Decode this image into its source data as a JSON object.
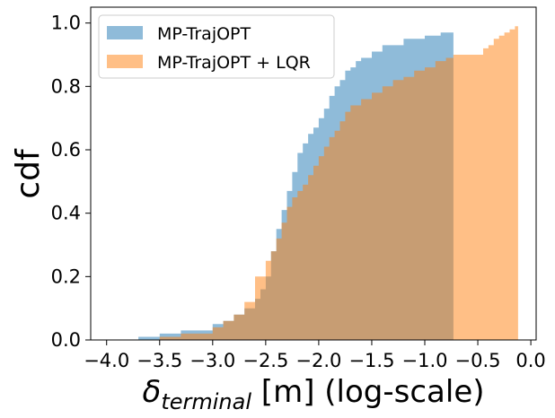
{
  "chart_data": {
    "type": "area",
    "title": "",
    "xlabel_symbol": "δ",
    "xlabel_subscript": "terminal",
    "xlabel_rest": " [m] (log-scale)",
    "ylabel": "cdf",
    "xlim": [
      -4.15,
      0.05
    ],
    "ylim": [
      0.0,
      1.05
    ],
    "xticks": [
      -4.0,
      -3.5,
      -3.0,
      -2.5,
      -2.0,
      -1.5,
      -1.0,
      -0.5,
      0.0
    ],
    "xtick_labels": [
      "−4.0",
      "−3.5",
      "−3.0",
      "−2.5",
      "−2.0",
      "−1.5",
      "−1.0",
      "−0.5",
      "0.0"
    ],
    "yticks": [
      0.0,
      0.2,
      0.4,
      0.6,
      0.8,
      1.0
    ],
    "ytick_labels": [
      "0.0",
      "0.2",
      "0.4",
      "0.6",
      "0.8",
      "1.0"
    ],
    "legend_position": "top-left",
    "series": [
      {
        "name": "MP-TrajOPT",
        "color": "#1f77b4",
        "opacity": 0.5,
        "x": [
          -3.95,
          -3.7,
          -3.5,
          -3.3,
          -3.0,
          -2.9,
          -2.8,
          -2.7,
          -2.6,
          -2.55,
          -2.5,
          -2.45,
          -2.4,
          -2.35,
          -2.3,
          -2.25,
          -2.2,
          -2.15,
          -2.1,
          -2.05,
          -2.0,
          -1.95,
          -1.9,
          -1.85,
          -1.8,
          -1.75,
          -1.7,
          -1.65,
          -1.6,
          -1.5,
          -1.4,
          -1.2,
          -1.0,
          -0.85,
          -0.73
        ],
        "y": [
          0.0,
          0.01,
          0.02,
          0.03,
          0.05,
          0.06,
          0.08,
          0.1,
          0.13,
          0.16,
          0.2,
          0.28,
          0.35,
          0.41,
          0.47,
          0.53,
          0.59,
          0.62,
          0.65,
          0.67,
          0.7,
          0.73,
          0.77,
          0.8,
          0.82,
          0.85,
          0.86,
          0.88,
          0.89,
          0.91,
          0.93,
          0.95,
          0.96,
          0.97,
          0.99
        ]
      },
      {
        "name": "MP-TrajOPT + LQR",
        "color": "#ff7f0e",
        "opacity": 0.5,
        "x": [
          -3.75,
          -3.5,
          -3.3,
          -3.0,
          -2.9,
          -2.8,
          -2.7,
          -2.6,
          -2.5,
          -2.45,
          -2.4,
          -2.35,
          -2.3,
          -2.25,
          -2.2,
          -2.15,
          -2.1,
          -2.05,
          -2.0,
          -1.95,
          -1.9,
          -1.85,
          -1.8,
          -1.75,
          -1.7,
          -1.6,
          -1.5,
          -1.4,
          -1.3,
          -1.2,
          -1.1,
          -1.0,
          -0.9,
          -0.8,
          -0.73,
          -0.5,
          -0.45,
          -0.4,
          -0.35,
          -0.3,
          -0.25,
          -0.2,
          -0.15,
          -0.12
        ],
        "y": [
          0.0,
          0.01,
          0.02,
          0.04,
          0.06,
          0.08,
          0.12,
          0.2,
          0.25,
          0.28,
          0.32,
          0.37,
          0.42,
          0.45,
          0.47,
          0.49,
          0.52,
          0.55,
          0.58,
          0.61,
          0.64,
          0.66,
          0.69,
          0.72,
          0.74,
          0.76,
          0.78,
          0.8,
          0.82,
          0.83,
          0.85,
          0.86,
          0.88,
          0.89,
          0.9,
          0.9,
          0.92,
          0.93,
          0.95,
          0.96,
          0.97,
          0.98,
          0.99,
          1.0
        ]
      }
    ]
  }
}
